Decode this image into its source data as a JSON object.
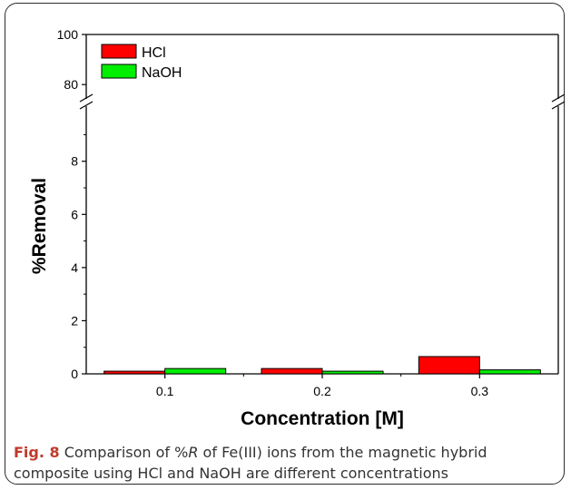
{
  "chart_data": {
    "type": "bar",
    "categories": [
      "0.1",
      "0.2",
      "0.3"
    ],
    "series": [
      {
        "name": "HCl",
        "values": [
          0.1,
          0.2,
          0.65
        ],
        "color": "#ff0000"
      },
      {
        "name": "NaOH",
        "values": [
          0.2,
          0.1,
          0.15
        ],
        "color": "#00ee00"
      }
    ],
    "xlabel": "Concentration [M]",
    "ylabel": "%Removal",
    "ylim_lower": [
      0,
      9.8
    ],
    "ylim_upper": [
      75,
      100
    ],
    "yticks_lower": [
      "0",
      "2",
      "4",
      "6",
      "8"
    ],
    "yticks_upper": [
      "80",
      "100"
    ],
    "axis_break": true,
    "legend_position": "top-left"
  },
  "caption": {
    "label": "Fig. 8",
    "text_before": " Comparison of %",
    "italic": "R",
    "text_after": " of Fe(III) ions from the magnetic hybrid composite using HCl and NaOH are different concentrations"
  }
}
